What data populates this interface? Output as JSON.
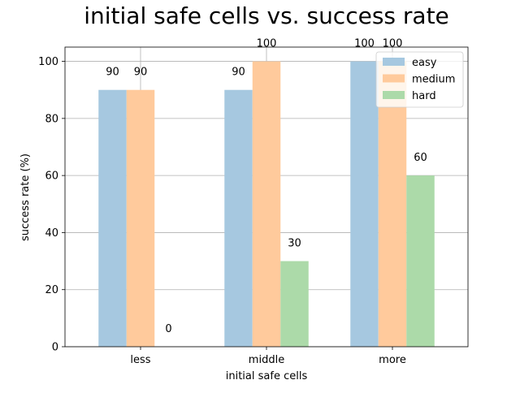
{
  "chart_data": {
    "type": "bar",
    "title": "initial safe cells vs. success rate",
    "xlabel": "initial safe cells",
    "ylabel": "success rate (%)",
    "categories": [
      "less",
      "middle",
      "more"
    ],
    "series": [
      {
        "name": "easy",
        "values": [
          90,
          90,
          100
        ],
        "color": "#a6c8e0"
      },
      {
        "name": "medium",
        "values": [
          90,
          100,
          100
        ],
        "color": "#ffca9c"
      },
      {
        "name": "hard",
        "values": [
          0,
          30,
          60
        ],
        "color": "#acdaa9"
      }
    ],
    "ylim": [
      0,
      105
    ],
    "yticks": [
      0,
      20,
      40,
      60,
      80,
      100
    ],
    "grid": true,
    "legend_position": "top-right",
    "data_labels": true
  }
}
